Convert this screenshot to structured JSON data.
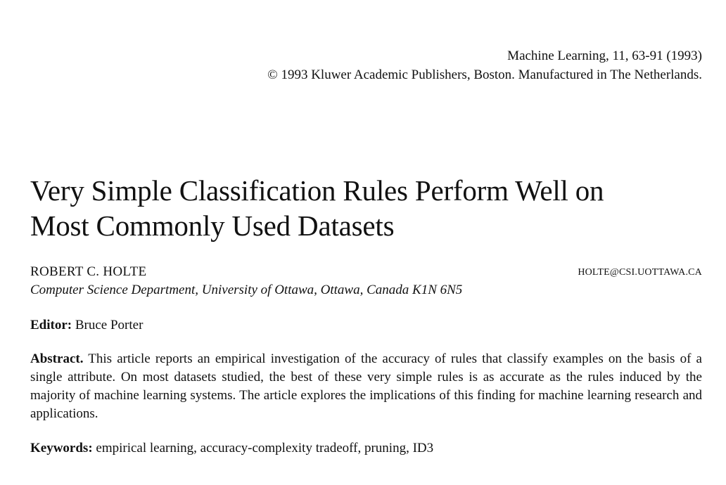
{
  "header": {
    "journal_line": "Machine Learning, 11, 63-91 (1993)",
    "copyright_line": "© 1993 Kluwer Academic Publishers, Boston. Manufactured in The Netherlands."
  },
  "title": {
    "line1": "Very Simple Classification Rules Perform Well on",
    "line2": "Most Commonly Used Datasets"
  },
  "author": {
    "name": "ROBERT C. HOLTE",
    "email": "HOLTE@CSI.UOTTAWA.CA",
    "affiliation": "Computer Science Department, University of Ottawa, Ottawa, Canada K1N 6N5"
  },
  "editor": {
    "label": "Editor:",
    "name": "Bruce Porter"
  },
  "abstract": {
    "label": "Abstract.",
    "text": "This article reports an empirical investigation of the accuracy of rules that classify examples on the basis of a single attribute. On most datasets studied, the best of these very simple rules is as accurate as the rules induced by the majority of machine learning systems. The article explores the implications of this finding for machine learning research and applications."
  },
  "keywords": {
    "label": "Keywords:",
    "text": "empirical learning, accuracy-complexity tradeoff, pruning, ID3"
  }
}
